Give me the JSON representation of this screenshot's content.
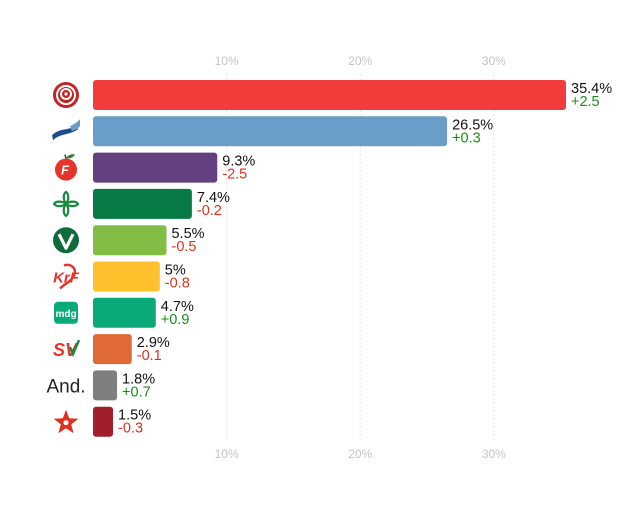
{
  "chart_data": {
    "type": "bar",
    "orientation": "horizontal",
    "title": "",
    "xlabel": "",
    "ylabel": "",
    "xlim": [
      0,
      35.4
    ],
    "ticks": [
      10,
      20,
      30
    ],
    "tick_labels": [
      "10%",
      "20%",
      "30%"
    ],
    "categories": [
      "Ap",
      "H",
      "FrP",
      "Sp",
      "V",
      "KrF",
      "MDG",
      "SV",
      "And.",
      "R"
    ],
    "values": [
      35.4,
      26.5,
      9.3,
      7.4,
      5.5,
      5,
      4.7,
      2.9,
      1.8,
      1.5
    ],
    "value_labels": [
      "35.4%",
      "26.5%",
      "9.3%",
      "7.4%",
      "5.5%",
      "5%",
      "4.7%",
      "2.9%",
      "1.8%",
      "1.5%"
    ],
    "changes": [
      2.5,
      0.3,
      -2.5,
      -0.2,
      -0.5,
      -0.8,
      0.9,
      -0.1,
      0.7,
      -0.3
    ],
    "change_labels": [
      "+2.5",
      "+0.3",
      "-2.5",
      "-0.2",
      "-0.5",
      "-0.8",
      "+0.9",
      "-0.1",
      "+0.7",
      "-0.3"
    ],
    "colors": [
      "#f23b3b",
      "#6a9dc8",
      "#63407f",
      "#077b45",
      "#82bd45",
      "#fec02d",
      "#0aa97a",
      "#e06a37",
      "#7f7f7f",
      "#a11e2c"
    ],
    "icons": [
      "ap-rose-icon",
      "h-flag-icon",
      "frp-apple-icon",
      "sp-clover-icon",
      "v-logo-icon",
      "krf-logo-icon",
      "mdg-logo-icon",
      "sv-logo-icon",
      "and-text-icon",
      "r-star-icon"
    ],
    "icon_texts": {
      "and": "And.",
      "mdg": "mdg",
      "sv": "SV",
      "krf": "KrF",
      "frp": "F",
      "v": "V"
    }
  },
  "colors": {
    "positive_change": "#1a8a1a",
    "negative_change": "#e0301e",
    "ap_dark": "#c42424",
    "h_dark": "#1d4d8e",
    "h_light": "#6a9dc8",
    "frp_red": "#e8332a",
    "frp_leaf": "#2e7d32",
    "sp_green": "#1b8a3f",
    "v_green": "#0f6b3b",
    "krf_red": "#e8332a",
    "mdg_green": "#0aa97a",
    "sv_red": "#e8332a",
    "sv_green": "#1b8a3f",
    "r_red": "#e0301e"
  }
}
